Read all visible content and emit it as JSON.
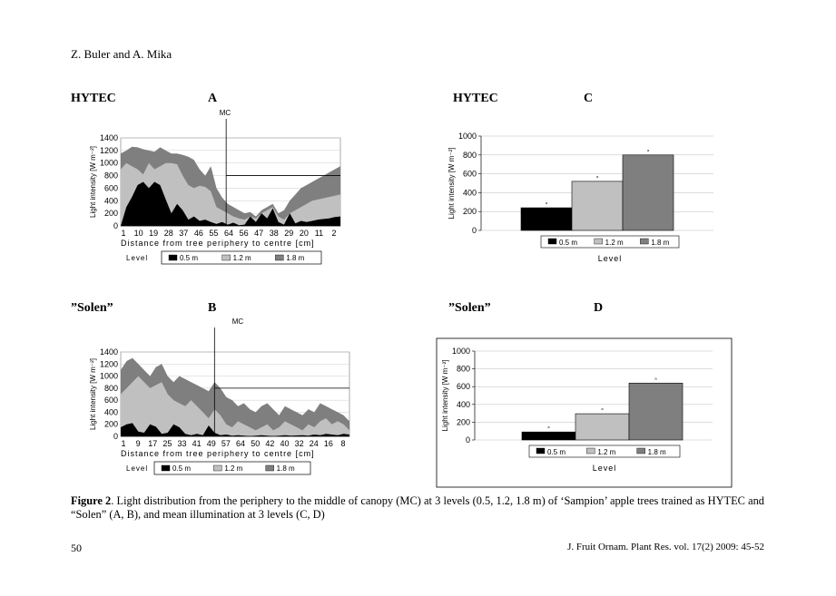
{
  "header": {
    "authors": "Z. Buler and A. Mika"
  },
  "panels": {
    "a": {
      "system": "HYTEC",
      "letter": "A",
      "mc": "MC"
    },
    "b": {
      "system": "”Solen”",
      "letter": "B",
      "mc": "MC"
    },
    "c": {
      "system": "HYTEC",
      "letter": "C"
    },
    "d": {
      "system": "”Solen”",
      "letter": "D"
    }
  },
  "chart_data": [
    {
      "id": "A",
      "type": "area",
      "ylabel": "Light intensity [W m⁻²]",
      "xlabel": "Distance from tree periphery to centre [cm]",
      "ylim": [
        0,
        1400
      ],
      "yticks": [
        "1400",
        "1200",
        "1000",
        "800",
        "600",
        "400",
        "200",
        "0"
      ],
      "xtick_labels": [
        "1",
        "10",
        "19",
        "28",
        "37",
        "46",
        "55",
        "64",
        "56",
        "47",
        "38",
        "29",
        "20",
        "11",
        "2"
      ],
      "legend_title": "Level",
      "legend": [
        "0.5 m",
        "1.2 m",
        "1.8 m"
      ],
      "series": [
        {
          "name": "0.5 m",
          "values": [
            0,
            300,
            460,
            650,
            700,
            600,
            700,
            650,
            420,
            200,
            350,
            250,
            100,
            150,
            80,
            100,
            60,
            30,
            60,
            20,
            50,
            10,
            20,
            150,
            60,
            200,
            120,
            280,
            60,
            20,
            200,
            40,
            80,
            60,
            80,
            100,
            110,
            120,
            140,
            150
          ]
        },
        {
          "name": "1.2 m",
          "values": [
            900,
            1000,
            950,
            900,
            820,
            1000,
            900,
            950,
            1000,
            1000,
            980,
            800,
            650,
            600,
            640,
            620,
            550,
            300,
            250,
            200,
            150,
            120,
            100,
            150,
            120,
            200,
            250,
            300,
            150,
            100,
            200,
            250,
            300,
            350,
            400,
            420,
            440,
            460,
            480,
            500
          ]
        },
        {
          "name": "1.8 m",
          "values": [
            1150,
            1200,
            1260,
            1250,
            1220,
            1200,
            1180,
            1250,
            1200,
            1150,
            1150,
            1130,
            1100,
            1050,
            900,
            800,
            950,
            600,
            450,
            350,
            300,
            250,
            200,
            220,
            150,
            250,
            300,
            350,
            200,
            250,
            400,
            500,
            600,
            650,
            700,
            750,
            800,
            850,
            900,
            950
          ]
        }
      ]
    },
    {
      "id": "B",
      "type": "area",
      "ylabel": "Light intensity [W m⁻²]",
      "xlabel": "Distance from tree periphery to centre [cm]",
      "ylim": [
        0,
        1400
      ],
      "yticks": [
        "1400",
        "1200",
        "1000",
        "800",
        "600",
        "400",
        "200",
        "0"
      ],
      "xtick_labels": [
        "1",
        "9",
        "17",
        "25",
        "33",
        "41",
        "49",
        "57",
        "64",
        "50",
        "42",
        "40",
        "32",
        "24",
        "16",
        "8"
      ],
      "legend_title": "Level",
      "legend": [
        "0.5 m",
        "1.2 m",
        "1.8 m"
      ],
      "series": [
        {
          "name": "0.5 m",
          "values": [
            150,
            200,
            220,
            80,
            60,
            200,
            160,
            40,
            60,
            200,
            150,
            40,
            20,
            40,
            20,
            180,
            60,
            20,
            30,
            10,
            20,
            10,
            5,
            10,
            20,
            10,
            5,
            10,
            20,
            10,
            15,
            20,
            10,
            30,
            20,
            40,
            30,
            20,
            40,
            30
          ]
        },
        {
          "name": "1.2 m",
          "values": [
            700,
            800,
            900,
            1000,
            900,
            800,
            850,
            900,
            700,
            600,
            550,
            500,
            600,
            500,
            400,
            300,
            450,
            350,
            200,
            150,
            250,
            200,
            150,
            100,
            150,
            200,
            100,
            150,
            250,
            200,
            150,
            100,
            200,
            150,
            250,
            300,
            200,
            250,
            200,
            100
          ]
        },
        {
          "name": "1.8 m",
          "values": [
            1100,
            1250,
            1300,
            1200,
            1100,
            1000,
            1150,
            1200,
            1000,
            900,
            1000,
            950,
            900,
            850,
            800,
            750,
            900,
            800,
            650,
            600,
            500,
            550,
            450,
            400,
            500,
            550,
            450,
            350,
            500,
            450,
            400,
            350,
            450,
            400,
            550,
            500,
            450,
            400,
            350,
            250
          ]
        }
      ]
    },
    {
      "id": "C",
      "type": "bar",
      "ylabel": "Light intensity [W m⁻²]",
      "xlabel": "Level",
      "ylim": [
        0,
        1000
      ],
      "yticks": [
        "1000",
        "800",
        "600",
        "400",
        "200",
        "0"
      ],
      "categories": [
        "0.5 m",
        "1.2 m",
        "1.8 m"
      ],
      "values": [
        240,
        520,
        800
      ],
      "colors": [
        "#000000",
        "#c0c0c0",
        "#7f7f7f"
      ]
    },
    {
      "id": "D",
      "type": "bar",
      "ylabel": "Light intensity [W m⁻²]",
      "xlabel": "Level",
      "ylim": [
        0,
        1000
      ],
      "yticks": [
        "1000",
        "800",
        "600",
        "400",
        "200",
        "0"
      ],
      "categories": [
        "0.5 m",
        "1.2 m",
        "1.8 m"
      ],
      "values": [
        90,
        295,
        640
      ],
      "colors": [
        "#000000",
        "#c0c0c0",
        "#7f7f7f"
      ]
    }
  ],
  "caption": {
    "label": "Figure 2",
    "text": ". Light distribution from the periphery to the middle of canopy (MC) at 3 levels (0.5, 1.2, 1.8 m) of ‘Sampion’ apple trees trained as HYTEC and “Solen” (A, B), and mean illumination at 3 levels (C, D)"
  },
  "footer": {
    "page": "50",
    "journal": "J. Fruit Ornam. Plant Res. vol. 17(2) 2009: 45-52"
  },
  "colors": {
    "level_05": "#000000",
    "level_12": "#c0c0c0",
    "level_18": "#7f7f7f"
  }
}
